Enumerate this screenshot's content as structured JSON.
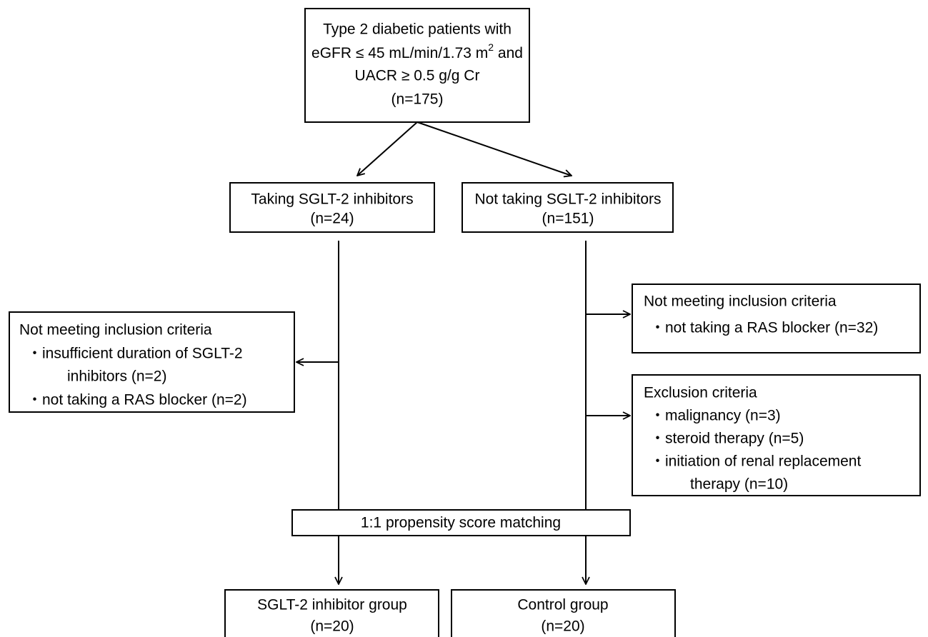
{
  "nodes": [
    {
      "lines": [
        "Type 2 diabetic patients with",
        [
          "eGFR ≤ 45 mL/min/1.73 m",
          "2",
          " and"
        ],
        "UACR ≥ 0.5 g/g Cr",
        "(n=175)"
      ]
    },
    {
      "lines": [
        "Taking SGLT-2 inhibitors",
        "(n=24)"
      ]
    },
    {
      "lines": [
        "Not taking SGLT-2 inhibitors",
        "(n=151)"
      ]
    },
    {
      "lines": [
        "Not meeting inclusion criteria",
        "・insufficient duration of SGLT-2",
        "inhibitors (n=2)",
        "・not taking a RAS blocker (n=2)"
      ]
    },
    {
      "lines": [
        "Not meeting inclusion criteria",
        "・not taking a RAS blocker (n=32)"
      ]
    },
    {
      "lines": [
        "Exclusion criteria",
        "・malignancy (n=3)",
        "・steroid therapy (n=5)",
        "・initiation of renal replacement",
        "therapy (n=10)"
      ]
    },
    {
      "lines": [
        "1:1 propensity score matching"
      ]
    },
    {
      "lines": [
        "SGLT-2 inhibitor group",
        "(n=20)"
      ]
    },
    {
      "lines": [
        "Control group",
        "(n=20)"
      ]
    }
  ]
}
